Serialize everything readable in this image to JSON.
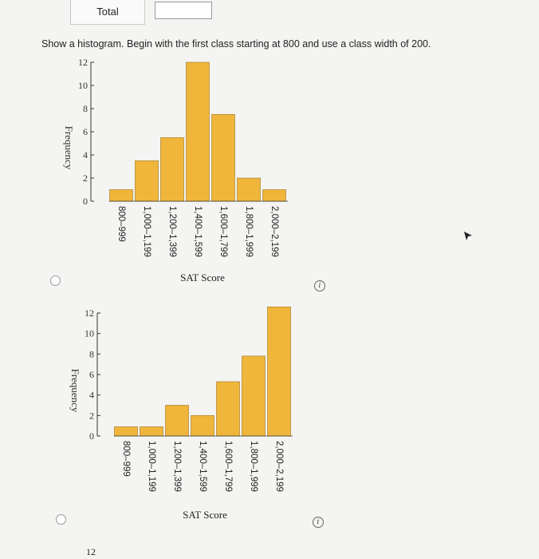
{
  "header": {
    "total_label": "Total"
  },
  "question": {
    "instruction": "Show a histogram. Begin with the first class starting at 800 and use a class width of 200."
  },
  "partial_tick": "12",
  "colors": {
    "bar": "#f0b63b",
    "bar_stroke": "#9a7420",
    "axis": "#333333"
  },
  "chart_data": [
    {
      "type": "bar",
      "categories": [
        "800–999",
        "1,000–1,199",
        "1,200–1,399",
        "1,400–1,599",
        "1,600–1,799",
        "1,800–1,999",
        "2,000–2,199"
      ],
      "values": [
        1,
        3.5,
        5.5,
        12,
        7.5,
        2,
        1
      ],
      "xlabel": "SAT Score",
      "ylabel": "Frequency",
      "ylim": [
        0,
        12
      ],
      "yticks": [
        "0",
        "2",
        "4",
        "6",
        "8",
        "10",
        "12"
      ],
      "grid": false
    },
    {
      "type": "bar",
      "categories": [
        "800–999",
        "1,000–1,199",
        "1,200–1,399",
        "1,400–1,599",
        "1,600–1,799",
        "1,800–1,999",
        "2,000–2,199"
      ],
      "values": [
        0.9,
        0.9,
        3,
        2,
        5.3,
        7.8,
        12.6
      ],
      "xlabel": "SAT Score",
      "ylabel": "Frequency",
      "ylim": [
        0,
        12
      ],
      "yticks": [
        "0",
        "2",
        "4",
        "6",
        "8",
        "10",
        "12"
      ],
      "grid": false
    }
  ]
}
